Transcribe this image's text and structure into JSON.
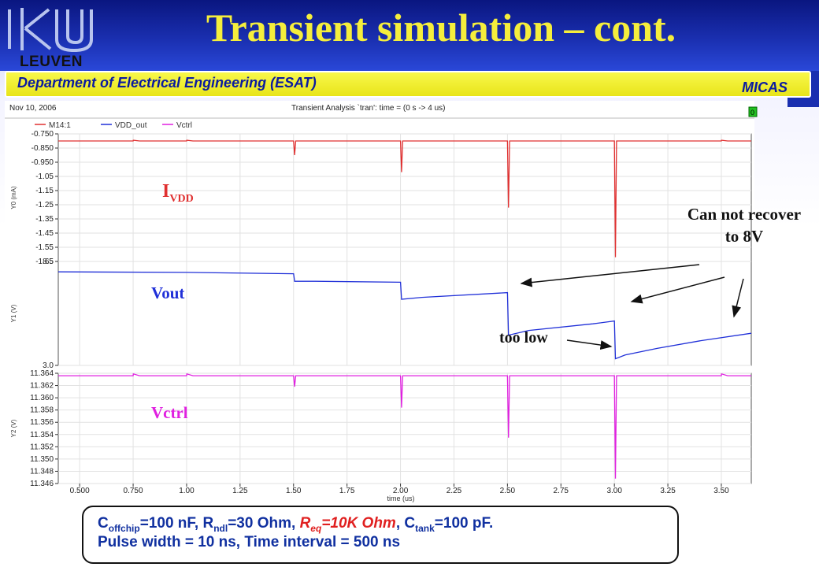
{
  "slide": {
    "title": "Transient simulation – cont.",
    "logo_text": "LEUVEN",
    "department": "Department of Electrical Engineering (ESAT)",
    "group": "MICAS"
  },
  "plot_header": {
    "date": "Nov 10, 2006",
    "analysis": "Transient Analysis `tran': time = (0 s -> 4 us)",
    "corner_box": "0"
  },
  "labels": {
    "ivdd_main": "I",
    "ivdd_sub": "VDD",
    "vout": "Vout",
    "vctrl": "Vctrl",
    "cannot_recover": "Can not recover to 8V",
    "too_low": "too low"
  },
  "note": {
    "c_offchip": "C",
    "c_offchip_sub": "offchip",
    "c_offchip_val": "=100 nF, R",
    "r_ndl_sub": "ndl",
    "r_ndl_val": "=30 Ohm, ",
    "r_eq": "R",
    "r_eq_sub": "eq",
    "r_eq_val": "=10K Ohm",
    "c_tank_pre": ", C",
    "c_tank_sub": "tank",
    "c_tank_val": "=100 pF.",
    "line2": "Pulse width = 10 ns,  Time interval = 500 ns"
  },
  "colors": {
    "header_blue": "#1a2fb0",
    "title_yellow": "#f5ee3c",
    "ivdd_red": "#e03030",
    "vout_blue": "#2030d8",
    "vctrl_magenta": "#e020e0"
  },
  "chart_data": {
    "type": "line",
    "xlabel": "time (us)",
    "xlim": [
      0.4,
      3.64
    ],
    "xticks": [
      0.5,
      0.75,
      1.0,
      1.25,
      1.5,
      1.75,
      2.0,
      2.25,
      2.5,
      2.75,
      3.0,
      3.25,
      3.5
    ],
    "xtick_labels": [
      "0.500",
      "0.750",
      "1.00",
      "1.25",
      "1.50",
      "1.75",
      "2.00",
      "2.25",
      "2.50",
      "2.75",
      "3.00",
      "3.25",
      "3.50"
    ],
    "legend": [
      {
        "name": "M14:1",
        "color": "#e03030"
      },
      {
        "name": "VDD_out",
        "color": "#2030d8"
      },
      {
        "name": "Vctrl",
        "color": "#e020e0"
      }
    ],
    "panels": [
      {
        "ylabel": "Y0 (mA)",
        "ylim": [
          -1.65,
          -0.75
        ],
        "yticks": [
          -0.75,
          -0.85,
          -0.95,
          -1.05,
          -1.15,
          -1.25,
          -1.35,
          -1.45,
          -1.55,
          -1.65
        ],
        "ytick_labels": [
          "-0.750",
          "-0.850",
          "-0.950",
          "-1.05",
          "-1.15",
          "-1.25",
          "-1.35",
          "-1.45",
          "-1.55",
          "-1.65"
        ],
        "series": [
          {
            "name": "M14:1",
            "color": "#e03030",
            "points": [
              [
                0.4,
                -0.8
              ],
              [
                0.75,
                -0.8
              ],
              [
                0.751,
                -0.795
              ],
              [
                0.78,
                -0.8
              ],
              [
                1.0,
                -0.8
              ],
              [
                1.001,
                -0.795
              ],
              [
                1.03,
                -0.8
              ],
              [
                1.5,
                -0.8
              ],
              [
                1.505,
                -0.9
              ],
              [
                1.51,
                -0.8
              ],
              [
                2.0,
                -0.8
              ],
              [
                2.005,
                -1.02
              ],
              [
                2.01,
                -0.8
              ],
              [
                2.5,
                -0.8
              ],
              [
                2.505,
                -1.27
              ],
              [
                2.51,
                -0.8
              ],
              [
                3.0,
                -0.8
              ],
              [
                3.005,
                -1.62
              ],
              [
                3.01,
                -0.8
              ],
              [
                3.5,
                -0.8
              ],
              [
                3.501,
                -0.795
              ],
              [
                3.53,
                -0.8
              ],
              [
                3.64,
                -0.8
              ]
            ]
          }
        ]
      },
      {
        "ylabel": "Y1 (V)",
        "ylim": [
          3.0,
          8.5
        ],
        "yticks": [
          3.0,
          8.5
        ],
        "ytick_labels": [
          "3.0",
          "8.5"
        ],
        "series": [
          {
            "name": "VDD_out",
            "color": "#2030d8",
            "points": [
              [
                0.4,
                7.95
              ],
              [
                1.0,
                7.92
              ],
              [
                1.5,
                7.85
              ],
              [
                1.505,
                7.45
              ],
              [
                1.6,
                7.45
              ],
              [
                2.0,
                7.4
              ],
              [
                2.005,
                6.5
              ],
              [
                2.1,
                6.6
              ],
              [
                2.5,
                6.85
              ],
              [
                2.505,
                4.6
              ],
              [
                2.6,
                4.85
              ],
              [
                2.9,
                5.2
              ],
              [
                3.0,
                5.35
              ],
              [
                3.005,
                3.35
              ],
              [
                3.05,
                3.55
              ],
              [
                3.2,
                3.9
              ],
              [
                3.4,
                4.3
              ],
              [
                3.64,
                4.7
              ]
            ]
          }
        ]
      },
      {
        "ylabel": "Y2 (V)",
        "ylim": [
          11.346,
          11.364
        ],
        "yticks": [
          11.346,
          11.348,
          11.35,
          11.352,
          11.354,
          11.356,
          11.358,
          11.36,
          11.362,
          11.364
        ],
        "ytick_labels": [
          "11.346",
          "11.348",
          "11.350",
          "11.352",
          "11.354",
          "11.356",
          "11.358",
          "11.360",
          "11.362",
          "11.364"
        ],
        "series": [
          {
            "name": "Vctrl",
            "color": "#e020e0",
            "points": [
              [
                0.4,
                11.3636
              ],
              [
                0.75,
                11.3636
              ],
              [
                0.751,
                11.3639
              ],
              [
                0.78,
                11.3636
              ],
              [
                1.0,
                11.3636
              ],
              [
                1.001,
                11.3639
              ],
              [
                1.03,
                11.3636
              ],
              [
                1.5,
                11.3636
              ],
              [
                1.505,
                11.3618
              ],
              [
                1.51,
                11.3636
              ],
              [
                2.0,
                11.3636
              ],
              [
                2.005,
                11.3584
              ],
              [
                2.01,
                11.3636
              ],
              [
                2.5,
                11.3636
              ],
              [
                2.505,
                11.3535
              ],
              [
                2.51,
                11.3636
              ],
              [
                3.0,
                11.3636
              ],
              [
                3.005,
                11.3468
              ],
              [
                3.01,
                11.3636
              ],
              [
                3.5,
                11.3636
              ],
              [
                3.501,
                11.3639
              ],
              [
                3.53,
                11.3636
              ],
              [
                3.64,
                11.3636
              ]
            ]
          }
        ]
      }
    ]
  }
}
